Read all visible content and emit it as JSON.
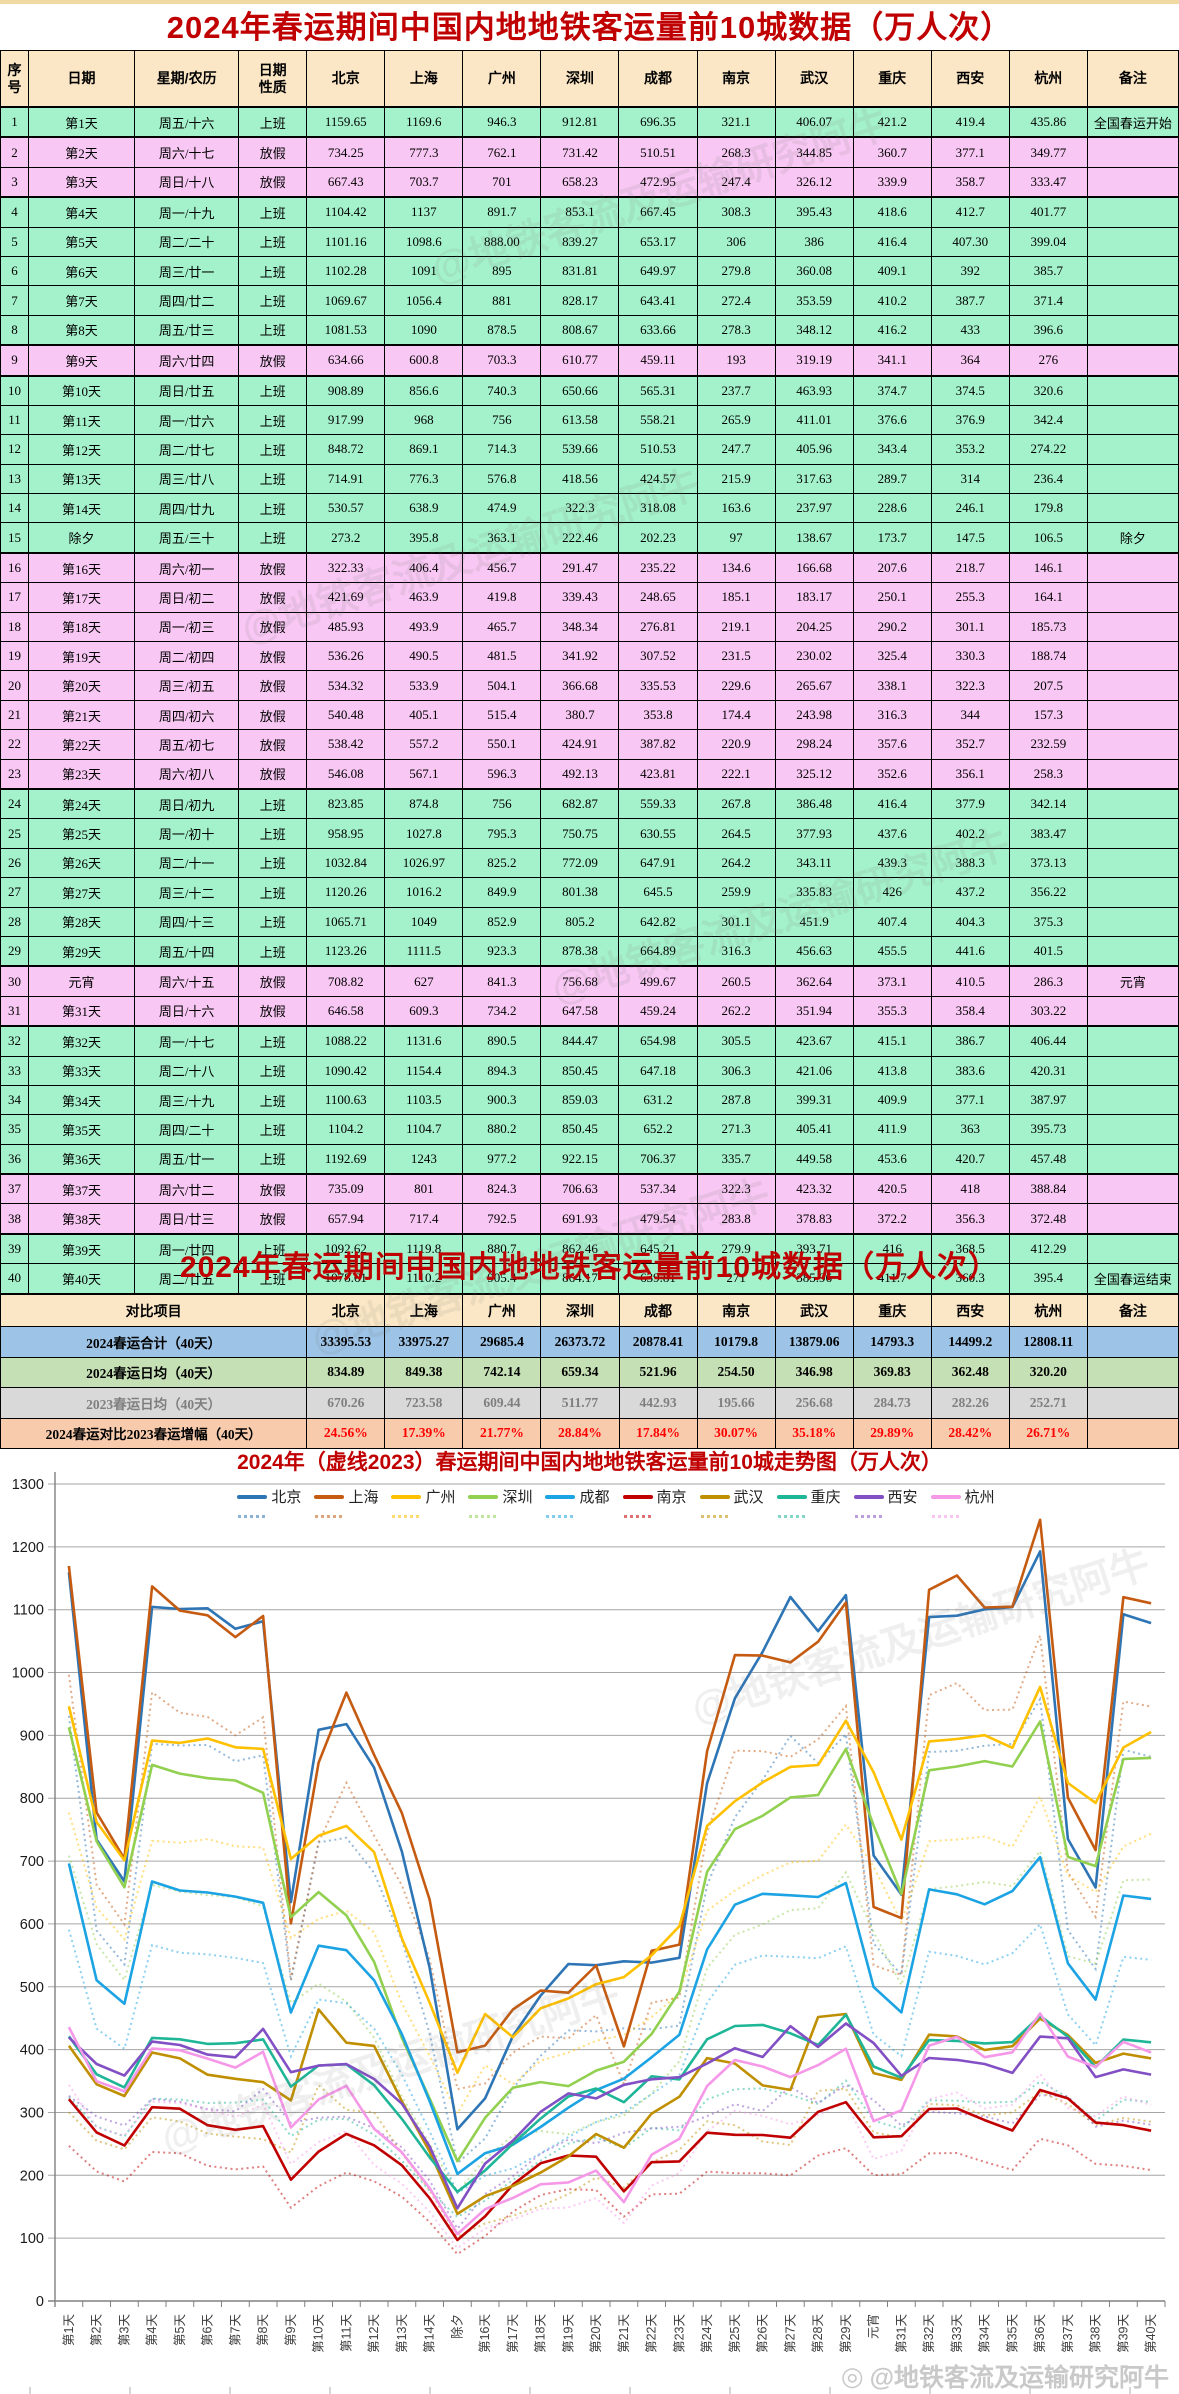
{
  "page": {
    "table1_title": "2024年春运期间中国内地地铁客运量前10城数据（万人次）",
    "summary_title": "2024年春运期间中国内地地铁客运量前10城数据（万人次）",
    "chart_title": "2024年（虚线2023）春运期间中国内地地铁客运量前10城走势图（万人次）",
    "watermark_text": "@地铁客流及运输研究阿牛"
  },
  "cities": [
    "北京",
    "上海",
    "广州",
    "深圳",
    "成都",
    "南京",
    "武汉",
    "重庆",
    "西安",
    "杭州"
  ],
  "table1": {
    "headers": [
      "序\n号",
      "日期",
      "星期/农历",
      "日期\n性质",
      "北京",
      "上海",
      "广州",
      "深圳",
      "成都",
      "南京",
      "武汉",
      "重庆",
      "西安",
      "杭州",
      "备注"
    ],
    "rows": [
      {
        "no": 1,
        "date": "第1天",
        "week": "周五/十六",
        "type": "上班",
        "note": "全国春运开始"
      },
      {
        "no": 2,
        "date": "第2天",
        "week": "周六/十七",
        "type": "放假",
        "note": ""
      },
      {
        "no": 3,
        "date": "第3天",
        "week": "周日/十八",
        "type": "放假",
        "note": ""
      },
      {
        "no": 4,
        "date": "第4天",
        "week": "周一/十九",
        "type": "上班",
        "note": ""
      },
      {
        "no": 5,
        "date": "第5天",
        "week": "周二/二十",
        "type": "上班",
        "note": ""
      },
      {
        "no": 6,
        "date": "第6天",
        "week": "周三/廿一",
        "type": "上班",
        "note": ""
      },
      {
        "no": 7,
        "date": "第7天",
        "week": "周四/廿二",
        "type": "上班",
        "note": ""
      },
      {
        "no": 8,
        "date": "第8天",
        "week": "周五/廿三",
        "type": "上班",
        "note": ""
      },
      {
        "no": 9,
        "date": "第9天",
        "week": "周六/廿四",
        "type": "放假",
        "note": ""
      },
      {
        "no": 10,
        "date": "第10天",
        "week": "周日/廿五",
        "type": "上班",
        "note": ""
      },
      {
        "no": 11,
        "date": "第11天",
        "week": "周一/廿六",
        "type": "上班",
        "note": ""
      },
      {
        "no": 12,
        "date": "第12天",
        "week": "周二/廿七",
        "type": "上班",
        "note": ""
      },
      {
        "no": 13,
        "date": "第13天",
        "week": "周三/廿八",
        "type": "上班",
        "note": ""
      },
      {
        "no": 14,
        "date": "第14天",
        "week": "周四/廿九",
        "type": "上班",
        "note": ""
      },
      {
        "no": 15,
        "date": "除夕",
        "week": "周五/三十",
        "type": "上班",
        "note": "除夕"
      },
      {
        "no": 16,
        "date": "第16天",
        "week": "周六/初一",
        "type": "放假",
        "note": ""
      },
      {
        "no": 17,
        "date": "第17天",
        "week": "周日/初二",
        "type": "放假",
        "note": ""
      },
      {
        "no": 18,
        "date": "第18天",
        "week": "周一/初三",
        "type": "放假",
        "note": ""
      },
      {
        "no": 19,
        "date": "第19天",
        "week": "周二/初四",
        "type": "放假",
        "note": ""
      },
      {
        "no": 20,
        "date": "第20天",
        "week": "周三/初五",
        "type": "放假",
        "note": ""
      },
      {
        "no": 21,
        "date": "第21天",
        "week": "周四/初六",
        "type": "放假",
        "note": ""
      },
      {
        "no": 22,
        "date": "第22天",
        "week": "周五/初七",
        "type": "放假",
        "note": ""
      },
      {
        "no": 23,
        "date": "第23天",
        "week": "周六/初八",
        "type": "放假",
        "note": ""
      },
      {
        "no": 24,
        "date": "第24天",
        "week": "周日/初九",
        "type": "上班",
        "note": ""
      },
      {
        "no": 25,
        "date": "第25天",
        "week": "周一/初十",
        "type": "上班",
        "note": ""
      },
      {
        "no": 26,
        "date": "第26天",
        "week": "周二/十一",
        "type": "上班",
        "note": ""
      },
      {
        "no": 27,
        "date": "第27天",
        "week": "周三/十二",
        "type": "上班",
        "note": ""
      },
      {
        "no": 28,
        "date": "第28天",
        "week": "周四/十三",
        "type": "上班",
        "note": ""
      },
      {
        "no": 29,
        "date": "第29天",
        "week": "周五/十四",
        "type": "上班",
        "note": ""
      },
      {
        "no": 30,
        "date": "元宵",
        "week": "周六/十五",
        "type": "放假",
        "note": "元宵"
      },
      {
        "no": 31,
        "date": "第31天",
        "week": "周日/十六",
        "type": "放假",
        "note": ""
      },
      {
        "no": 32,
        "date": "第32天",
        "week": "周一/十七",
        "type": "上班",
        "note": ""
      },
      {
        "no": 33,
        "date": "第33天",
        "week": "周二/十八",
        "type": "上班",
        "note": ""
      },
      {
        "no": 34,
        "date": "第34天",
        "week": "周三/十九",
        "type": "上班",
        "note": ""
      },
      {
        "no": 35,
        "date": "第35天",
        "week": "周四/二十",
        "type": "上班",
        "note": ""
      },
      {
        "no": 36,
        "date": "第36天",
        "week": "周五/廿一",
        "type": "上班",
        "note": ""
      },
      {
        "no": 37,
        "date": "第37天",
        "week": "周六/廿二",
        "type": "放假",
        "note": ""
      },
      {
        "no": 38,
        "date": "第38天",
        "week": "周日/廿三",
        "type": "放假",
        "note": ""
      },
      {
        "no": 39,
        "date": "第39天",
        "week": "周一/廿四",
        "type": "上班",
        "note": ""
      },
      {
        "no": 40,
        "date": "第40天",
        "week": "周二/廿五",
        "type": "上班",
        "note": "全国春运结束"
      }
    ]
  },
  "summary": {
    "header_label": "对比项目",
    "note_label": "备注",
    "rows": [
      {
        "label": "2024春运合计（40天）",
        "style": "blue",
        "values": [
          "33395.53",
          "33975.27",
          "29685.4",
          "26373.72",
          "20878.41",
          "10179.8",
          "13879.06",
          "14793.3",
          "14499.2",
          "12808.11"
        ]
      },
      {
        "label": "2024春运日均（40天）",
        "style": "green",
        "values": [
          "834.89",
          "849.38",
          "742.14",
          "659.34",
          "521.96",
          "254.50",
          "346.98",
          "369.83",
          "362.48",
          "320.20"
        ]
      },
      {
        "label": "2023春运日均（40天）",
        "style": "gray",
        "values": [
          "670.26",
          "723.58",
          "609.44",
          "511.77",
          "442.93",
          "195.66",
          "256.68",
          "284.73",
          "282.26",
          "252.71"
        ]
      },
      {
        "label": "2024春运对比2023春运增幅（40天）",
        "style": "orange",
        "values": [
          "24.56%",
          "17.39%",
          "21.77%",
          "28.84%",
          "17.84%",
          "30.07%",
          "35.18%",
          "29.89%",
          "28.42%",
          "26.71%"
        ]
      }
    ]
  },
  "chart_data": {
    "type": "line",
    "title": "2024年（虚线2023）春运期间中国内地地铁客运量前10城走势图（万人次）",
    "ylim": [
      0,
      1300
    ],
    "ytick_step": 100,
    "grid": true,
    "legend_position": "top",
    "dashed_series_label": "虚线2023",
    "categories": [
      "第1天",
      "第2天",
      "第3天",
      "第4天",
      "第5天",
      "第6天",
      "第7天",
      "第8天",
      "第9天",
      "第10天",
      "第11天",
      "第12天",
      "第13天",
      "第14天",
      "除夕",
      "第16天",
      "第17天",
      "第18天",
      "第19天",
      "第20天",
      "第21天",
      "第22天",
      "第23天",
      "第24天",
      "第25天",
      "第26天",
      "第27天",
      "第28天",
      "第29天",
      "元宵",
      "第31天",
      "第32天",
      "第33天",
      "第34天",
      "第35天",
      "第36天",
      "第37天",
      "第38天",
      "第39天",
      "第40天"
    ],
    "series": [
      {
        "name": "北京",
        "color": "#2E75B6",
        "values": [
          1159.65,
          734.25,
          667.43,
          1104.42,
          1101.16,
          1102.28,
          1069.67,
          1081.53,
          634.66,
          908.89,
          917.99,
          848.72,
          714.91,
          530.57,
          273.2,
          322.33,
          421.69,
          485.93,
          536.26,
          534.32,
          540.48,
          538.42,
          546.08,
          823.85,
          958.95,
          1032.84,
          1120.26,
          1065.71,
          1123.26,
          708.82,
          646.58,
          1088.22,
          1090.42,
          1100.63,
          1104.2,
          1192.69,
          735.09,
          657.94,
          1092.62,
          1078.61
        ]
      },
      {
        "name": "上海",
        "color": "#C55A11",
        "values": [
          1169.6,
          777.3,
          703.7,
          1137,
          1098.6,
          1091,
          1056.4,
          1090,
          600.8,
          856.6,
          968,
          869.1,
          776.3,
          638.9,
          395.8,
          406.4,
          463.9,
          493.9,
          490.5,
          533.9,
          405.1,
          557.2,
          567.1,
          874.8,
          1027.8,
          1026.97,
          1016.2,
          1049,
          1111.5,
          627,
          609.3,
          1131.6,
          1154.4,
          1103.5,
          1104.7,
          1243,
          801,
          717.4,
          1119.8,
          1110.2
        ]
      },
      {
        "name": "广州",
        "color": "#FFC000",
        "values": [
          946.3,
          762.1,
          701,
          891.7,
          "888.00",
          895,
          881,
          878.5,
          703.3,
          740.3,
          756,
          714.3,
          576.8,
          474.9,
          363.1,
          456.7,
          419.8,
          465.7,
          481.5,
          504.1,
          515.4,
          550.1,
          596.3,
          756,
          795.3,
          825.2,
          849.9,
          852.9,
          923.3,
          841.3,
          734.2,
          890.5,
          894.3,
          900.3,
          880.2,
          977.2,
          824.3,
          792.5,
          880.7,
          905.4
        ]
      },
      {
        "name": "深圳",
        "color": "#92D050",
        "values": [
          912.81,
          731.42,
          658.23,
          853.1,
          839.27,
          831.81,
          828.17,
          808.67,
          610.77,
          650.66,
          613.58,
          539.66,
          418.56,
          322.3,
          222.46,
          291.47,
          339.43,
          348.34,
          341.92,
          366.68,
          380.7,
          424.91,
          492.13,
          682.87,
          750.75,
          772.09,
          801.38,
          805.2,
          878.38,
          756.68,
          647.58,
          844.47,
          850.45,
          859.03,
          850.45,
          922.15,
          706.63,
          691.93,
          862.46,
          864.17
        ]
      },
      {
        "name": "成都",
        "color": "#1BA3E3",
        "values": [
          696.35,
          510.51,
          472.95,
          667.45,
          653.17,
          649.97,
          643.41,
          633.66,
          459.11,
          565.31,
          558.21,
          510.53,
          424.57,
          318.08,
          202.23,
          235.22,
          248.65,
          276.81,
          307.52,
          335.53,
          353.8,
          387.82,
          423.81,
          559.33,
          630.55,
          647.91,
          645.5,
          642.82,
          664.89,
          499.67,
          459.24,
          654.98,
          647.18,
          631.2,
          652.2,
          706.37,
          537.34,
          479.54,
          645.21,
          639.81
        ]
      },
      {
        "name": "南京",
        "color": "#C00000",
        "values": [
          321.1,
          268.3,
          247.4,
          308.3,
          306,
          279.8,
          272.4,
          278.3,
          193,
          237.7,
          265.9,
          247.7,
          215.9,
          163.6,
          97,
          134.6,
          185.1,
          219.1,
          231.5,
          229.6,
          174.4,
          220.9,
          222.1,
          267.8,
          264.5,
          264.2,
          259.9,
          301.1,
          316.3,
          260.5,
          262.2,
          305.5,
          306.3,
          287.8,
          271.3,
          335.7,
          322.3,
          283.8,
          279.9,
          271
        ]
      },
      {
        "name": "武汉",
        "color": "#BF8F00",
        "values": [
          406.07,
          344.85,
          326.12,
          395.43,
          386,
          360.08,
          353.59,
          348.12,
          319.19,
          463.93,
          411.01,
          405.96,
          317.63,
          237.97,
          138.67,
          166.68,
          183.17,
          204.25,
          230.02,
          265.67,
          243.98,
          298.24,
          325.12,
          386.48,
          377.93,
          343.11,
          335.83,
          451.9,
          456.63,
          362.64,
          351.94,
          423.67,
          421.06,
          399.31,
          405.41,
          449.58,
          423.32,
          378.83,
          393.71,
          385.96
        ]
      },
      {
        "name": "重庆",
        "color": "#1FB698",
        "values": [
          421.2,
          360.7,
          339.9,
          418.6,
          416.4,
          409.1,
          410.2,
          416.2,
          341.1,
          374.7,
          376.6,
          343.4,
          289.7,
          228.6,
          173.7,
          207.6,
          250.1,
          290.2,
          325.4,
          338.1,
          316.3,
          357.6,
          352.6,
          416.4,
          437.6,
          439.3,
          426,
          407.4,
          455.5,
          373.1,
          355.3,
          415.1,
          413.8,
          409.9,
          411.9,
          453.6,
          420.5,
          372.2,
          416,
          411.7
        ]
      },
      {
        "name": "西安",
        "color": "#8250C4",
        "values": [
          419.4,
          377.1,
          358.7,
          412.7,
          "407.30",
          392,
          387.7,
          433,
          364,
          374.5,
          376.9,
          353.2,
          314,
          246.1,
          147.5,
          218.7,
          255.3,
          301.1,
          330.3,
          322.3,
          344,
          352.7,
          356.1,
          377.9,
          402.2,
          388.3,
          437.2,
          404.3,
          441.6,
          410.5,
          358.4,
          386.7,
          383.6,
          377.1,
          363,
          420.7,
          418,
          356.3,
          368.5,
          360.3
        ]
      },
      {
        "name": "杭州",
        "color": "#F598E8",
        "values": [
          435.86,
          349.77,
          333.47,
          401.77,
          399.04,
          385.7,
          371.4,
          396.6,
          276,
          320.6,
          342.4,
          274.22,
          236.4,
          179.8,
          106.5,
          146.1,
          164.1,
          185.73,
          188.74,
          207.5,
          157.3,
          232.59,
          258.3,
          342.14,
          383.47,
          373.13,
          356.22,
          375.3,
          401.5,
          286.3,
          303.22,
          406.44,
          420.31,
          387.97,
          395.73,
          457.48,
          388.84,
          372.48,
          412.29,
          395.4
        ]
      }
    ]
  }
}
